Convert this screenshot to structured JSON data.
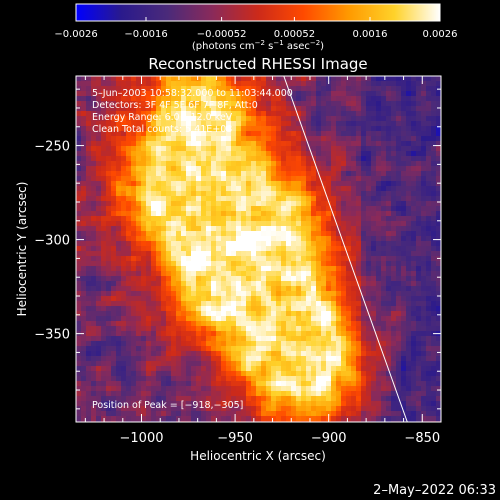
{
  "chart_data": {
    "type": "heatmap",
    "title": "Reconstructed RHESSI Image",
    "xlabel": "Heliocentric X (arcsec)",
    "ylabel": "Heliocentric Y (arcsec)",
    "xlim": [
      -1035,
      -840
    ],
    "ylim": [
      -397,
      -213
    ],
    "x_ticks": [
      -1000,
      -950,
      -900,
      -850
    ],
    "x_tick_labels": [
      "−1000",
      "−950",
      "−900",
      "−850"
    ],
    "y_ticks": [
      -250,
      -300,
      -350
    ],
    "y_tick_labels": [
      "−250",
      "−300",
      "−350"
    ],
    "colorbar": {
      "range": [
        -0.0026,
        0.0026
      ],
      "ticks": [
        -0.0026,
        -0.0016,
        -0.00052,
        0.00052,
        0.0016,
        0.0026
      ],
      "tick_labels": [
        "−0.0026",
        "−0.0016",
        "−0.00052",
        "0.00052",
        "0.0016",
        "0.0026"
      ],
      "unit_label_main": "(photons cm",
      "unit_label_exp1": "−2",
      "unit_label_mid": " s",
      "unit_label_exp2": "−1",
      "unit_label_mid2": " asec",
      "unit_label_exp3": "−2",
      "unit_label_end": ")",
      "colormap": [
        "#0000ff",
        "#2a1a8c",
        "#4a2a7a",
        "#8a2a5a",
        "#cc2a1a",
        "#ff4a00",
        "#ff9a00",
        "#ffd22a",
        "#ffffff"
      ]
    },
    "annotations": [
      "5–Jun–2003 10:58:32.000 to 11:03:44.000",
      "Detectors: 3F 4F 5F 6F 7F 8F, Att:0",
      "Energy Range: 6.0 – 12.0 keV",
      "Clean      Total counts: 5.41E+03"
    ],
    "peak_label": "Position of Peak = [−918,−305]",
    "peak": [
      -918,
      -305
    ],
    "limb_line": [
      [
        -924,
        -213
      ],
      [
        -858,
        -397
      ]
    ],
    "bright_region": {
      "description_ignored": true,
      "centers": [
        [
          -970,
          -230
        ],
        [
          -985,
          -270
        ],
        [
          -950,
          -280
        ],
        [
          -930,
          -300
        ],
        [
          -960,
          -320
        ],
        [
          -925,
          -345
        ],
        [
          -910,
          -370
        ]
      ]
    }
  },
  "footer": {
    "timestamp": "2–May–2022 06:33"
  }
}
